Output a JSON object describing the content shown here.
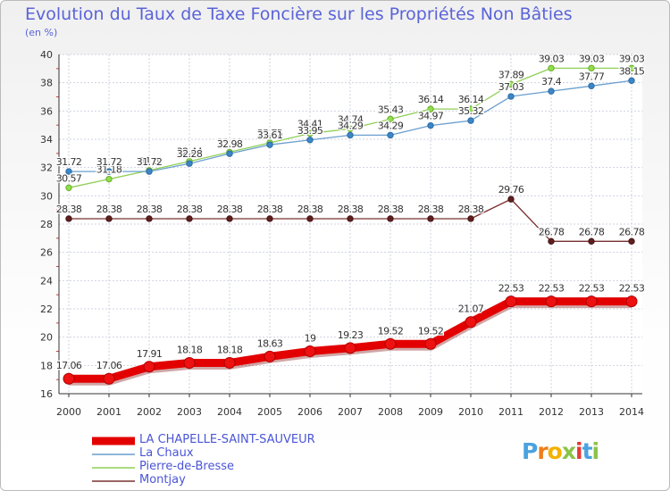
{
  "chart_data": {
    "type": "line",
    "title": "Evolution du Taux de Taxe Foncière sur les Propriétés Non Bâties",
    "ylabel": "(en %)",
    "xlabel": "",
    "categories": [
      "2000",
      "2001",
      "2002",
      "2003",
      "2004",
      "2005",
      "2006",
      "2007",
      "2008",
      "2009",
      "2010",
      "2011",
      "2012",
      "2013",
      "2014"
    ],
    "ylim": [
      16,
      40
    ],
    "yticks": [
      16,
      18,
      20,
      22,
      24,
      26,
      28,
      30,
      32,
      34,
      36,
      38,
      40
    ],
    "grid": true,
    "series": [
      {
        "name": "LA CHAPELLE-SAINT-SAUVEUR",
        "color": "#ff0000",
        "values": [
          17.06,
          17.06,
          17.91,
          18.18,
          18.18,
          18.63,
          19,
          19.23,
          19.52,
          19.52,
          21.07,
          22.53,
          22.53,
          22.53,
          22.53
        ],
        "labels": [
          "17.06",
          "17.06",
          "17.91",
          "18.18",
          "18.18",
          "18.63",
          "19",
          "19.23",
          "19.52",
          "19.52",
          "21.07",
          "22.53",
          "22.53",
          "22.53",
          "22.53"
        ]
      },
      {
        "name": "La Chaux",
        "color": "#5b9bd5",
        "values": [
          31.72,
          31.72,
          31.72,
          32.28,
          32.98,
          33.61,
          33.95,
          34.29,
          34.29,
          34.97,
          35.32,
          37.03,
          37.4,
          37.77,
          38.15
        ],
        "labels": [
          "31.72",
          "31.72",
          "31.72",
          "32.28",
          "32.98",
          "33.61",
          "33.95",
          "34.29",
          "34.29",
          "34.97",
          "35.32",
          "37.03",
          "37.4",
          "37.77",
          "38.15"
        ]
      },
      {
        "name": "Pierre-de-Bresse",
        "color": "#99e05a",
        "values": [
          30.57,
          31.18,
          31.8,
          32.44,
          33.09,
          33.75,
          34.41,
          34.74,
          35.43,
          36.14,
          36.14,
          37.89,
          39.03,
          39.03,
          39.03
        ],
        "labels": [
          "30.57",
          "31.18",
          "31.8",
          "32.44",
          "33.09",
          "33.75",
          "34.41",
          "34.74",
          "35.43",
          "36.14",
          "36.14",
          "37.89",
          "39.03",
          "39.03",
          "39.03"
        ]
      },
      {
        "name": "Montjay",
        "color": "#7a2a2a",
        "values": [
          28.38,
          28.38,
          28.38,
          28.38,
          28.38,
          28.38,
          28.38,
          28.38,
          28.38,
          28.38,
          28.38,
          29.76,
          26.78,
          26.78,
          26.78
        ],
        "labels": [
          "28.38",
          "28.38",
          "28.38",
          "28.38",
          "28.38",
          "28.38",
          "28.38",
          "28.38",
          "28.38",
          "28.38",
          "28.38",
          "29.76",
          "26.78",
          "26.78",
          "26.78"
        ]
      }
    ]
  },
  "legend": [
    "LA CHAPELLE-SAINT-SAUVEUR",
    "La Chaux",
    "Pierre-de-Bresse",
    "Montjay"
  ],
  "logo": {
    "letters": [
      "P",
      "r",
      "o",
      "x",
      "i",
      "t",
      "i"
    ],
    "colors": [
      "#4aa3df",
      "#ef7d1a",
      "#f3b100",
      "#8bc34a",
      "#e53935",
      "#4aa3df",
      "#8bc34a"
    ]
  }
}
